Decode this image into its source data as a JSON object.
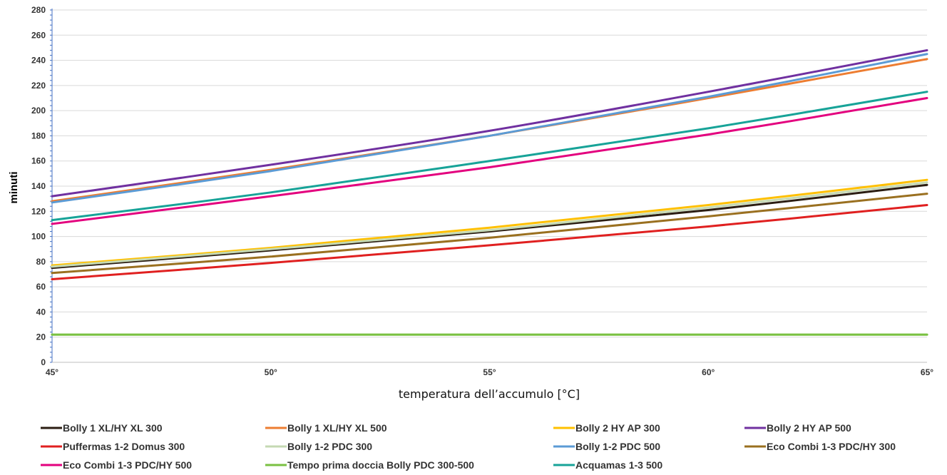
{
  "chart_data": {
    "type": "line",
    "title": "",
    "xlabel": "temperatura dell’accumulo [°C]",
    "ylabel": "minuti",
    "x": [
      45,
      50,
      55,
      60,
      65
    ],
    "x_tick_labels": [
      "45°",
      "50°",
      "55°",
      "60°",
      "65°"
    ],
    "ylim": [
      0,
      280
    ],
    "y_ticks": [
      0,
      20,
      40,
      60,
      80,
      100,
      120,
      140,
      160,
      180,
      200,
      220,
      240,
      260,
      280
    ],
    "grid": true,
    "legend_position": "bottom",
    "series": [
      {
        "name": "Bolly 1 XL/HY XL 300",
        "color": "#2b1d12",
        "values": [
          75,
          89,
          104,
          121,
          141
        ]
      },
      {
        "name": "Bolly 1 XL/HY XL 500",
        "color": "#ed7d31",
        "values": [
          128,
          153,
          180,
          210,
          241
        ]
      },
      {
        "name": "Bolly 2 HY AP 300",
        "color": "#ffc000",
        "values": [
          77,
          91,
          107,
          125,
          145
        ]
      },
      {
        "name": "Bolly 2 HY AP 500",
        "color": "#7030a0",
        "values": [
          132,
          157,
          184,
          215,
          248
        ]
      },
      {
        "name": "Puffermas 1-2 Domus 300",
        "color": "#e02020",
        "values": [
          66,
          79,
          93,
          108,
          125
        ]
      },
      {
        "name": "Bolly 1-2 PDC 300",
        "color": "#c5d9b3",
        "values": [
          76,
          90,
          105,
          123,
          143
        ]
      },
      {
        "name": "Bolly 1-2 PDC 500",
        "color": "#5b9bd5",
        "values": [
          127,
          152,
          180,
          211,
          245
        ]
      },
      {
        "name": "Eco Combi 1-3 PDC/HY 300",
        "color": "#9a7020",
        "values": [
          71,
          84,
          99,
          116,
          134
        ]
      },
      {
        "name": "Eco Combi 1-3 PDC/HY 500",
        "color": "#e3007e",
        "values": [
          110,
          132,
          155,
          181,
          210
        ]
      },
      {
        "name": "Tempo prima doccia Bolly PDC 300-500",
        "color": "#7ac142",
        "values": [
          22,
          22,
          22,
          22,
          22
        ]
      },
      {
        "name": "Acquamas 1-3  500",
        "color": "#17a398",
        "values": [
          113,
          135,
          160,
          186,
          215
        ]
      }
    ]
  }
}
